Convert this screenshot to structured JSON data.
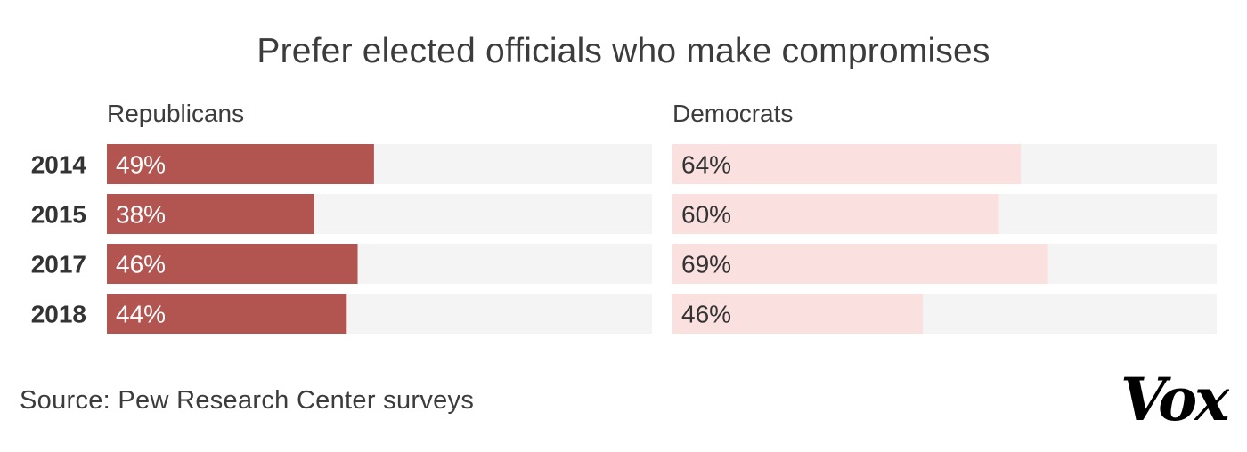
{
  "chart_data": {
    "type": "bar",
    "title": "Prefer elected officials who make compromises",
    "categories": [
      "2014",
      "2015",
      "2017",
      "2018"
    ],
    "series": [
      {
        "name": "Republicans",
        "values": [
          49,
          38,
          46,
          44
        ],
        "labels": [
          "49%",
          "38%",
          "46%",
          "44%"
        ]
      },
      {
        "name": "Democrats",
        "values": [
          64,
          60,
          69,
          46
        ],
        "labels": [
          "64%",
          "60%",
          "69%",
          "46%"
        ]
      }
    ],
    "xlim": [
      0,
      100
    ],
    "orientation": "horizontal",
    "grid": false,
    "legend": "none",
    "source": "Source: Pew Research Center surveys"
  },
  "colors": {
    "republicans": "#b25450",
    "democrats": "#fbe0e0",
    "track": "#f4f4f4",
    "republican_label_text": "#ffffff",
    "democrat_label_text": "#333333"
  },
  "brand": {
    "logo_text": "Vox"
  }
}
